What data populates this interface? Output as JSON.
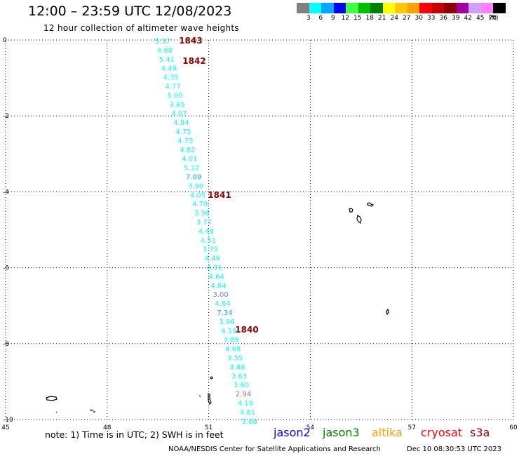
{
  "header": {
    "title": "12:00 – 23:59 UTC 12/08/2023",
    "subtitle": "12 hour collection of altimeter wave heights"
  },
  "legend": {
    "colors": [
      "#808080",
      "#00ffff",
      "#00a8ff",
      "#0000ff",
      "#40ff40",
      "#00c000",
      "#008000",
      "#ffff00",
      "#ffc800",
      "#ffa000",
      "#ff0000",
      "#c80000",
      "#900000",
      "#a000a0",
      "#d0a0ff",
      "#ff80ff",
      "#000000"
    ],
    "labels": [
      "3",
      "6",
      "9",
      "12",
      "15",
      "18",
      "21",
      "24",
      "27",
      "30",
      "33",
      "36",
      "39",
      "42",
      "45",
      "70",
      "(ft)"
    ]
  },
  "axes": {
    "x_ticks": [
      "45",
      "48",
      "51",
      "54",
      "57",
      "60"
    ],
    "y_ticks": [
      "0",
      "-2",
      "-4",
      "-6",
      "-8",
      "-10"
    ]
  },
  "time_labels": [
    "1843",
    "1842",
    "1841",
    "1840"
  ],
  "wave_points": [
    {
      "v": "5.37",
      "c": "#00ffff"
    },
    {
      "v": "4.68",
      "c": "#00ffff"
    },
    {
      "v": "5.41",
      "c": "#00ffff"
    },
    {
      "v": "4.49",
      "c": "#00ffff"
    },
    {
      "v": "4.35",
      "c": "#00ffff"
    },
    {
      "v": "4.77",
      "c": "#00ffff"
    },
    {
      "v": "5.00",
      "c": "#00ffff"
    },
    {
      "v": "3.85",
      "c": "#00ffff"
    },
    {
      "v": "4.07",
      "c": "#00ffff"
    },
    {
      "v": "4.84",
      "c": "#00ffff"
    },
    {
      "v": "4.75",
      "c": "#00ffff"
    },
    {
      "v": "4.75",
      "c": "#00ffff"
    },
    {
      "v": "4.82",
      "c": "#00ffff"
    },
    {
      "v": "4.01",
      "c": "#00ffff"
    },
    {
      "v": "5.12",
      "c": "#00ffff"
    },
    {
      "v": "7.09",
      "c": "#00a8ff"
    },
    {
      "v": "3.90",
      "c": "#00ffff"
    },
    {
      "v": "4.05",
      "c": "#00ffff"
    },
    {
      "v": "4.79",
      "c": "#00ffff"
    },
    {
      "v": "3.56",
      "c": "#00ffff"
    },
    {
      "v": "3.77",
      "c": "#00ffff"
    },
    {
      "v": "4.48",
      "c": "#00ffff"
    },
    {
      "v": "4.51",
      "c": "#00ffff"
    },
    {
      "v": "3.75",
      "c": "#00ffff"
    },
    {
      "v": "4.49",
      "c": "#00ffff"
    },
    {
      "v": "4.31",
      "c": "#00ffff"
    },
    {
      "v": "4.64",
      "c": "#00ffff"
    },
    {
      "v": "4.84",
      "c": "#00ffff"
    },
    {
      "v": "3.00",
      "c": "#808080"
    },
    {
      "v": "4.64",
      "c": "#00ffff"
    },
    {
      "v": "7.34",
      "c": "#00a8ff"
    },
    {
      "v": "3.96",
      "c": "#00ffff"
    },
    {
      "v": "4.19",
      "c": "#00ffff"
    },
    {
      "v": "3.89",
      "c": "#00ffff"
    },
    {
      "v": "4.68",
      "c": "#00ffff"
    },
    {
      "v": "3.55",
      "c": "#00ffff"
    },
    {
      "v": "3.88",
      "c": "#00ffff"
    },
    {
      "v": "3.63",
      "c": "#00ffff"
    },
    {
      "v": "3.60",
      "c": "#00ffff"
    },
    {
      "v": "2.94",
      "c": "#808080"
    },
    {
      "v": "4.19",
      "c": "#00ffff"
    },
    {
      "v": "4.61",
      "c": "#00ffff"
    },
    {
      "v": "3.68",
      "c": "#00ffff"
    }
  ],
  "footer": {
    "note": "note: 1) Time is in UTC; 2) SWH is in feet",
    "satellites": [
      {
        "name": "jason2",
        "color": "#0000ff"
      },
      {
        "name": "jason3",
        "color": "#008000"
      },
      {
        "name": "altika",
        "color": "#ffa000"
      },
      {
        "name": "cryosat",
        "color": "#ff0000"
      },
      {
        "name": "s3a",
        "color": "#900000"
      }
    ],
    "credit": "NOAA/NESDIS Center for Satellite Applications and Research",
    "timestamp": "Dec 10 08:30:53 UTC 2023"
  }
}
